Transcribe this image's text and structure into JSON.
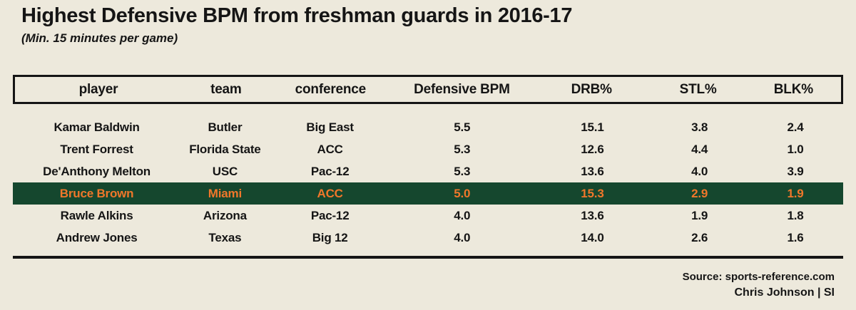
{
  "colors": {
    "background": "#EDE9DC",
    "text": "#151515",
    "border": "#151515",
    "highlight_background": "#15472E",
    "highlight_text": "#F0772A"
  },
  "chart_data": {
    "type": "table",
    "title": "Highest Defensive BPM from freshman guards in 2016-17",
    "subtitle": "(Min. 15 minutes per game)",
    "columns": [
      "player",
      "team",
      "conference",
      "Defensive BPM",
      "DRB%",
      "STL%",
      "BLK%"
    ],
    "rows": [
      [
        "Kamar Baldwin",
        "Butler",
        "Big East",
        "5.5",
        "15.1",
        "3.8",
        "2.4"
      ],
      [
        "Trent Forrest",
        "Florida State",
        "ACC",
        "5.3",
        "12.6",
        "4.4",
        "1.0"
      ],
      [
        "De'Anthony Melton",
        "USC",
        "Pac-12",
        "5.3",
        "13.6",
        "4.0",
        "3.9"
      ],
      [
        "Bruce Brown",
        "Miami",
        "ACC",
        "5.0",
        "15.3",
        "2.9",
        "1.9"
      ],
      [
        "Rawle Alkins",
        "Arizona",
        "Pac-12",
        "4.0",
        "13.6",
        "1.9",
        "1.8"
      ],
      [
        "Andrew Jones",
        "Texas",
        "Big 12",
        "4.0",
        "14.0",
        "2.6",
        "1.6"
      ]
    ],
    "highlighted_row_index": 3,
    "highlighted_player": "Bruce Brown",
    "source_label": "Source: sports-reference.com",
    "credit": "Chris Johnson | SI"
  }
}
